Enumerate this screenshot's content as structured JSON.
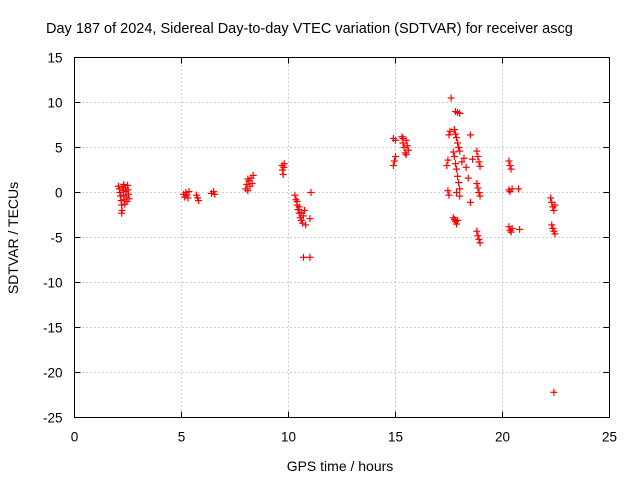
{
  "chart_data": {
    "type": "scatter",
    "title": "Day 187 of 2024, Sidereal Day-to-day VTEC variation (SDTVAR) for receiver ascg",
    "xlabel": "GPS time / hours",
    "ylabel": "SDTVAR / TECUs",
    "xlim": [
      0,
      25
    ],
    "ylim": [
      -25,
      15
    ],
    "xticks": [
      "0",
      "5",
      "10",
      "15",
      "20",
      "25"
    ],
    "yticks": [
      "15",
      "10",
      "5",
      "0",
      "-5",
      "-10",
      "-15",
      "-20",
      "-25"
    ],
    "grid": true,
    "marker": "+",
    "color": "#ff0000",
    "series": [
      {
        "name": "SDTVAR",
        "points": [
          [
            2.05,
            0.7
          ],
          [
            2.1,
            0.4
          ],
          [
            2.12,
            0.0
          ],
          [
            2.15,
            -0.4
          ],
          [
            2.18,
            -0.9
          ],
          [
            2.2,
            -1.4
          ],
          [
            2.22,
            -2.0
          ],
          [
            2.25,
            0.6
          ],
          [
            2.28,
            0.2
          ],
          [
            2.3,
            -0.3
          ],
          [
            2.32,
            -0.8
          ],
          [
            2.35,
            -1.3
          ],
          [
            2.38,
            0.5
          ],
          [
            2.4,
            0.1
          ],
          [
            2.42,
            -0.5
          ],
          [
            2.45,
            -1.0
          ],
          [
            2.48,
            0.8
          ],
          [
            2.5,
            0.3
          ],
          [
            2.52,
            -0.2
          ],
          [
            2.55,
            -0.7
          ],
          [
            2.2,
            -2.3
          ],
          [
            2.3,
            0.9
          ],
          [
            5.1,
            -0.2
          ],
          [
            5.15,
            -0.5
          ],
          [
            5.2,
            0.0
          ],
          [
            5.25,
            -0.3
          ],
          [
            5.3,
            -0.6
          ],
          [
            5.35,
            0.1
          ],
          [
            5.7,
            -0.3
          ],
          [
            5.75,
            -0.6
          ],
          [
            5.8,
            -0.9
          ],
          [
            6.4,
            -0.1
          ],
          [
            6.5,
            0.1
          ],
          [
            6.55,
            -0.2
          ],
          [
            8.0,
            0.4
          ],
          [
            8.05,
            0.9
          ],
          [
            8.1,
            0.2
          ],
          [
            8.15,
            1.3
          ],
          [
            8.2,
            0.7
          ],
          [
            8.25,
            1.6
          ],
          [
            8.3,
            1.0
          ],
          [
            8.35,
            1.9
          ],
          [
            8.1,
            1.5
          ],
          [
            9.7,
            3.0
          ],
          [
            9.72,
            2.5
          ],
          [
            9.75,
            2.0
          ],
          [
            9.78,
            2.8
          ],
          [
            9.8,
            3.2
          ],
          [
            10.3,
            -0.3
          ],
          [
            10.35,
            -0.8
          ],
          [
            10.4,
            -1.4
          ],
          [
            10.45,
            -1.9
          ],
          [
            10.5,
            -2.3
          ],
          [
            10.55,
            -2.8
          ],
          [
            10.6,
            -3.1
          ],
          [
            10.65,
            -3.4
          ],
          [
            10.7,
            -2.6
          ],
          [
            10.75,
            -2.0
          ],
          [
            10.4,
            -1.0
          ],
          [
            10.5,
            -1.6
          ],
          [
            10.6,
            -2.2
          ],
          [
            10.8,
            -3.6
          ],
          [
            10.7,
            -7.2
          ],
          [
            11.0,
            -7.2
          ],
          [
            11.0,
            -2.9
          ],
          [
            11.05,
            0.0
          ],
          [
            14.9,
            3.0
          ],
          [
            14.95,
            3.5
          ],
          [
            15.0,
            4.0
          ],
          [
            14.9,
            6.0
          ],
          [
            15.0,
            5.8
          ],
          [
            15.3,
            6.2
          ],
          [
            15.35,
            5.5
          ],
          [
            15.4,
            5.0
          ],
          [
            15.45,
            4.4
          ],
          [
            15.5,
            5.8
          ],
          [
            15.55,
            5.2
          ],
          [
            15.6,
            4.7
          ],
          [
            15.35,
            6.0
          ],
          [
            15.5,
            4.2
          ],
          [
            17.4,
            3.0
          ],
          [
            17.45,
            3.6
          ],
          [
            17.5,
            6.4
          ],
          [
            17.55,
            6.8
          ],
          [
            17.6,
            10.5
          ],
          [
            17.45,
            0.2
          ],
          [
            17.5,
            -0.3
          ],
          [
            17.7,
            -2.8
          ],
          [
            17.75,
            -3.0
          ],
          [
            17.8,
            -3.2
          ],
          [
            17.85,
            -3.5
          ],
          [
            17.9,
            -3.1
          ],
          [
            17.75,
            7.0
          ],
          [
            17.8,
            6.5
          ],
          [
            17.85,
            6.1
          ],
          [
            17.9,
            5.5
          ],
          [
            17.95,
            5.0
          ],
          [
            18.0,
            4.6
          ],
          [
            17.75,
            4.0
          ],
          [
            17.8,
            3.2
          ],
          [
            17.85,
            2.6
          ],
          [
            17.9,
            1.8
          ],
          [
            17.95,
            1.1
          ],
          [
            18.0,
            0.4
          ],
          [
            17.8,
            9.0
          ],
          [
            17.9,
            8.9
          ],
          [
            18.0,
            8.8
          ],
          [
            17.85,
            0.0
          ],
          [
            18.0,
            -0.4
          ],
          [
            17.7,
            4.5
          ],
          [
            18.1,
            3.4
          ],
          [
            18.2,
            3.8
          ],
          [
            18.3,
            2.8
          ],
          [
            18.4,
            1.6
          ],
          [
            18.5,
            -1.1
          ],
          [
            18.5,
            6.4
          ],
          [
            18.6,
            3.7
          ],
          [
            18.8,
            4.6
          ],
          [
            18.85,
            4.0
          ],
          [
            18.9,
            3.4
          ],
          [
            18.95,
            2.9
          ],
          [
            18.8,
            1.0
          ],
          [
            18.85,
            0.5
          ],
          [
            18.9,
            0.0
          ],
          [
            18.95,
            -0.4
          ],
          [
            18.8,
            -4.3
          ],
          [
            18.85,
            -4.8
          ],
          [
            18.9,
            -5.2
          ],
          [
            18.95,
            -5.6
          ],
          [
            20.3,
            3.5
          ],
          [
            20.35,
            3.0
          ],
          [
            20.4,
            2.6
          ],
          [
            20.3,
            0.3
          ],
          [
            20.35,
            0.1
          ],
          [
            20.45,
            0.4
          ],
          [
            20.3,
            -3.8
          ],
          [
            20.35,
            -4.2
          ],
          [
            20.4,
            -4.4
          ],
          [
            20.45,
            -4.0
          ],
          [
            20.75,
            0.4
          ],
          [
            20.8,
            -4.1
          ],
          [
            22.25,
            -0.6
          ],
          [
            22.3,
            -1.1
          ],
          [
            22.35,
            -1.6
          ],
          [
            22.4,
            -2.0
          ],
          [
            22.45,
            -1.4
          ],
          [
            22.3,
            -3.6
          ],
          [
            22.35,
            -4.0
          ],
          [
            22.4,
            -4.3
          ],
          [
            22.45,
            -4.6
          ],
          [
            22.4,
            -22.2
          ]
        ]
      }
    ]
  }
}
